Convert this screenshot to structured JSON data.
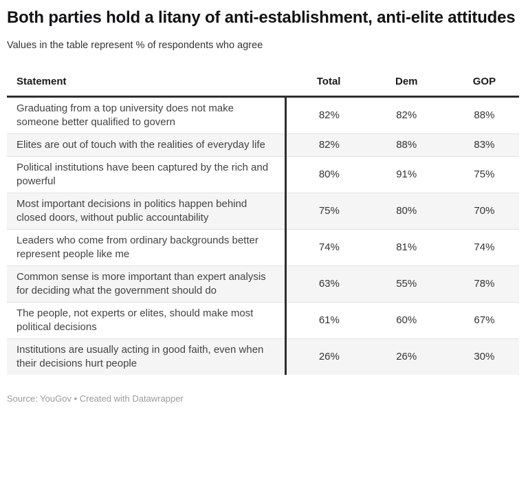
{
  "header": {
    "title": "Both parties hold a litany of anti-establishment, anti-elite attitudes",
    "subtitle": "Values in the table represent % of respondents who agree"
  },
  "table": {
    "columns": [
      "Statement",
      "Total",
      "Dem",
      "GOP"
    ],
    "rows": [
      {
        "statement": "Graduating from a top university does not make someone better qualified to govern",
        "total": "82%",
        "dem": "82%",
        "gop": "88%"
      },
      {
        "statement": "Elites are out of touch with the realities of everyday life",
        "total": "82%",
        "dem": "88%",
        "gop": "83%"
      },
      {
        "statement": "Political institutions have been captured by the rich and powerful",
        "total": "80%",
        "dem": "91%",
        "gop": "75%"
      },
      {
        "statement": "Most important decisions in politics happen behind closed doors, without public accountability",
        "total": "75%",
        "dem": "80%",
        "gop": "70%"
      },
      {
        "statement": "Leaders who come from ordinary backgrounds better represent people like me",
        "total": "74%",
        "dem": "81%",
        "gop": "74%"
      },
      {
        "statement": "Common sense is more important than expert analysis for deciding what the government should do",
        "total": "63%",
        "dem": "55%",
        "gop": "78%"
      },
      {
        "statement": "The people, not experts or elites, should make most political decisions",
        "total": "61%",
        "dem": "60%",
        "gop": "67%"
      },
      {
        "statement": "Institutions are usually acting in good faith, even when their decisions hurt people",
        "total": "26%",
        "dem": "26%",
        "gop": "30%"
      }
    ]
  },
  "footer": {
    "source": "Source: YouGov • Created with Datawrapper"
  },
  "colors": {
    "divider": "#2e2e2e",
    "alt_row_background": "#f5f5f5",
    "row_separator": "#e3e3e3",
    "footer_text": "#9b9b9b",
    "body_text": "#333333",
    "title_text": "#131316"
  },
  "chart_data": {
    "type": "table",
    "title": "Both parties hold a litany of anti-establishment, anti-elite attitudes",
    "subtitle": "Values in the table represent % of respondents who agree",
    "unit": "%",
    "columns": [
      "Statement",
      "Total",
      "Dem",
      "GOP"
    ],
    "rows": [
      [
        "Graduating from a top university does not make someone better qualified to govern",
        82,
        82,
        88
      ],
      [
        "Elites are out of touch with the realities of everyday life",
        82,
        88,
        83
      ],
      [
        "Political institutions have been captured by the rich and powerful",
        80,
        91,
        75
      ],
      [
        "Most important decisions in politics happen behind closed doors, without public accountability",
        75,
        80,
        70
      ],
      [
        "Leaders who come from ordinary backgrounds better represent people like me",
        74,
        81,
        74
      ],
      [
        "Common sense is more important than expert analysis for deciding what the government should do",
        63,
        55,
        78
      ],
      [
        "The people, not experts or elites, should make most political decisions",
        61,
        60,
        67
      ],
      [
        "Institutions are usually acting in good faith, even when their decisions hurt people",
        26,
        26,
        30
      ]
    ],
    "source": "YouGov",
    "tool": "Datawrapper"
  }
}
